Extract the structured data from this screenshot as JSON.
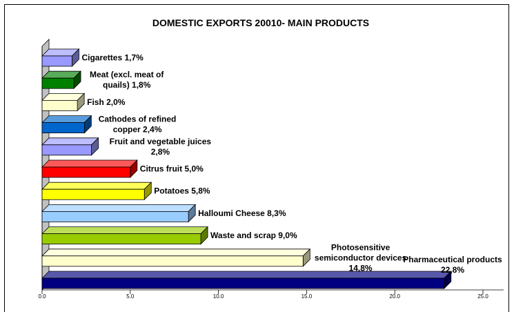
{
  "chart_data": {
    "type": "bar",
    "orientation": "horizontal",
    "style": "3d",
    "title": "DOMESTIC EXPORTS 20010- MAIN PRODUCTS",
    "xlim": [
      0,
      25
    ],
    "x_ticks": [
      "0.0",
      "5.0",
      "10.0",
      "15.0",
      "20.0",
      "25.0"
    ],
    "grid": false,
    "legend": "none",
    "categories": [
      {
        "label_lines": [
          "Cigarettes 1,7%"
        ],
        "value": 1.7,
        "color": "#9999ff"
      },
      {
        "label_lines": [
          "Meat (excl. meat of",
          "quails)  1,8%"
        ],
        "value": 1.8,
        "color": "#008000"
      },
      {
        "label_lines": [
          "Fish 2,0%"
        ],
        "value": 2.0,
        "color": "#ffffcc"
      },
      {
        "label_lines": [
          "Cathodes of refined",
          "copper 2,4%"
        ],
        "value": 2.4,
        "color": "#0066cc"
      },
      {
        "label_lines": [
          "Fruit and vegetable juices",
          "2,8%"
        ],
        "value": 2.8,
        "color": "#9999ff"
      },
      {
        "label_lines": [
          "Citrus fruit 5,0%"
        ],
        "value": 5.0,
        "color": "#ff0000"
      },
      {
        "label_lines": [
          "Potatoes 5,8%"
        ],
        "value": 5.8,
        "color": "#ffff00"
      },
      {
        "label_lines": [
          "Halloumi Cheese 8,3%"
        ],
        "value": 8.3,
        "color": "#99ccff"
      },
      {
        "label_lines": [
          "Waste and scrap 9,0%"
        ],
        "value": 9.0,
        "color": "#99cc00"
      },
      {
        "label_lines": [
          "Photosensitive",
          "semiconductor devices",
          "14,8%"
        ],
        "value": 14.8,
        "color": "#ffffcc"
      },
      {
        "label_lines": [
          "Pharmaceutical products",
          "22,8%"
        ],
        "value": 22.8,
        "color": "#000080"
      }
    ]
  }
}
